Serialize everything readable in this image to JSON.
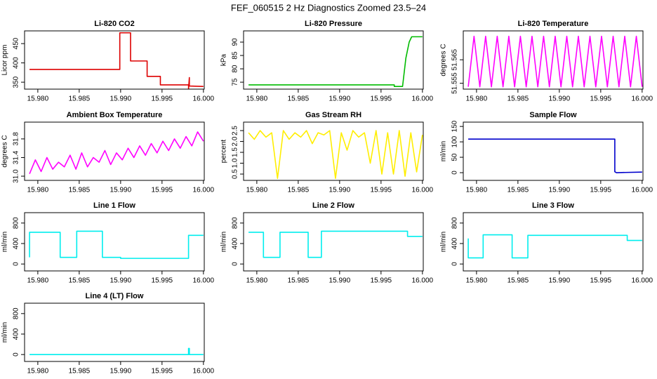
{
  "title": "FEF_060515  2 Hz Diagnostics Zoomed 23.5–24",
  "chart_data": [
    {
      "type": "line",
      "title": "Li-820 CO2",
      "ylabel": "Licor ppm",
      "color": "#dd0000",
      "x": [
        15.979,
        15.9899,
        15.9899,
        15.9912,
        15.9912,
        15.9932,
        15.9932,
        15.9948,
        15.9948,
        15.9982,
        15.9982,
        15.9983,
        15.9983,
        16.0
      ],
      "values": [
        383,
        383,
        478,
        478,
        405,
        405,
        365,
        365,
        343,
        343,
        332,
        362,
        340,
        339
      ],
      "xlim": [
        15.9784,
        16.0001
      ],
      "ylim": [
        332,
        483
      ],
      "xticks": [
        {
          "value": 15.98,
          "label": "15.980"
        },
        15.985,
        {
          "value": 15.99,
          "label": "15.990"
        },
        15.995,
        {
          "value": 16.0,
          "label": "16.000"
        }
      ],
      "yticks": [
        350,
        400,
        450
      ]
    },
    {
      "type": "line",
      "title": "Li-820 Pressure",
      "ylabel": "kPa",
      "color": "#00bb00",
      "x": [
        15.979,
        15.9966,
        15.9966,
        15.9976,
        15.998,
        15.9984,
        15.9987,
        16.0
      ],
      "values": [
        74,
        74,
        73.4,
        73.4,
        84,
        90,
        92,
        92
      ],
      "xlim": [
        15.9784,
        16.0001
      ],
      "ylim": [
        72.4,
        94.2
      ],
      "xticks": [
        {
          "value": 15.98,
          "label": "15.980"
        },
        15.985,
        {
          "value": 15.99,
          "label": "15.990"
        },
        15.995,
        {
          "value": 16.0,
          "label": "16.000"
        }
      ],
      "yticks": [
        75,
        80,
        85,
        90
      ]
    },
    {
      "type": "line",
      "title": "Li-820 Temperature",
      "ylabel": "degrees C",
      "color": "#ff00ff",
      "x": [
        15.979,
        15.9797,
        15.9804,
        15.9811,
        15.9818,
        15.9825,
        15.9832,
        15.9839,
        15.9846,
        15.9853,
        15.986,
        15.9867,
        15.9874,
        15.9881,
        15.9888,
        15.9895,
        15.9902,
        15.9909,
        15.9916,
        15.9923,
        15.993,
        15.9937,
        15.9944,
        15.9951,
        15.9958,
        15.9965,
        15.9972,
        15.9979,
        15.9986,
        15.9993,
        16.0
      ],
      "values": [
        51.5535,
        51.575,
        51.5535,
        51.575,
        51.5535,
        51.575,
        51.5535,
        51.575,
        51.5535,
        51.575,
        51.5535,
        51.575,
        51.5535,
        51.575,
        51.5535,
        51.575,
        51.5535,
        51.575,
        51.5535,
        51.575,
        51.5535,
        51.575,
        51.5535,
        51.575,
        51.5535,
        51.575,
        51.5535,
        51.575,
        51.5535,
        51.575,
        51.5535
      ],
      "xlim": [
        15.9784,
        16.0001
      ],
      "ylim": [
        51.5525,
        51.5773
      ],
      "xticks": [
        {
          "value": 15.98,
          "label": "15.980"
        },
        15.985,
        {
          "value": 15.99,
          "label": "15.990"
        },
        15.995,
        {
          "value": 16.0,
          "label": "16.000"
        }
      ],
      "yticks": [
        51.555,
        51.565
      ]
    },
    {
      "type": "line",
      "title": "Ambient Box Temperature",
      "ylabel": "degrees C",
      "color": "#ff00ff",
      "x": [
        15.979,
        15.9797,
        15.9804,
        15.9811,
        15.9818,
        15.9825,
        15.9832,
        15.9839,
        15.9846,
        15.9853,
        15.986,
        15.9867,
        15.9874,
        15.9881,
        15.9888,
        15.9895,
        15.9902,
        15.9909,
        15.9916,
        15.9923,
        15.993,
        15.9937,
        15.9944,
        15.9951,
        15.9958,
        15.9965,
        15.9972,
        15.9979,
        15.9986,
        15.9993,
        16.0
      ],
      "values": [
        31.05,
        31.35,
        31.1,
        31.4,
        31.15,
        31.3,
        31.2,
        31.45,
        31.15,
        31.5,
        31.2,
        31.4,
        31.3,
        31.55,
        31.25,
        31.5,
        31.35,
        31.6,
        31.4,
        31.65,
        31.45,
        31.7,
        31.5,
        31.75,
        31.55,
        31.8,
        31.6,
        31.85,
        31.65,
        31.95,
        31.75
      ],
      "xlim": [
        15.9784,
        16.0001
      ],
      "ylim": [
        30.91,
        32.16
      ],
      "xticks": [
        {
          "value": 15.98,
          "label": "15.980"
        },
        15.985,
        {
          "value": 15.99,
          "label": "15.990"
        },
        15.995,
        {
          "value": 16.0,
          "label": "16.000"
        }
      ],
      "yticks": [
        {
          "value": 31.0,
          "label": "31.0"
        },
        31.4,
        31.8
      ]
    },
    {
      "type": "line",
      "title": "Gas Stream RH",
      "ylabel": "percent",
      "color": "#ffee00",
      "x": [
        15.979,
        15.9797,
        15.9804,
        15.9811,
        15.9818,
        15.9825,
        15.9832,
        15.9839,
        15.9846,
        15.9853,
        15.986,
        15.9867,
        15.9874,
        15.9881,
        15.9888,
        15.9895,
        15.9902,
        15.9909,
        15.9916,
        15.9923,
        15.993,
        15.9937,
        15.9944,
        15.9951,
        15.9958,
        15.9965,
        15.9972,
        15.9979,
        15.9986,
        15.9993,
        16.0
      ],
      "values": [
        2.4,
        2.1,
        2.5,
        2.2,
        2.4,
        0.3,
        2.5,
        2.1,
        2.4,
        2.2,
        2.5,
        1.9,
        2.4,
        2.3,
        2.5,
        0.3,
        2.4,
        1.6,
        2.5,
        2.2,
        2.4,
        1.0,
        2.5,
        0.5,
        2.4,
        0.5,
        2.5,
        0.4,
        2.4,
        0.6,
        2.3
      ],
      "xlim": [
        15.9784,
        16.0001
      ],
      "ylim": [
        0.21,
        2.89
      ],
      "xticks": [
        {
          "value": 15.98,
          "label": "15.980"
        },
        15.985,
        {
          "value": 15.99,
          "label": "15.990"
        },
        15.995,
        {
          "value": 16.0,
          "label": "16.000"
        }
      ],
      "yticks": [
        0.5,
        {
          "value": 1.0,
          "label": "1.0"
        },
        1.5,
        {
          "value": 2.0,
          "label": "2.0"
        },
        2.5
      ]
    },
    {
      "type": "line",
      "title": "Sample Flow",
      "ylabel": "ml/min",
      "color": "#0000cc",
      "x": [
        15.979,
        15.9967,
        15.9967,
        15.9969,
        16.0
      ],
      "values": [
        109,
        109,
        3,
        0,
        2
      ],
      "xlim": [
        15.9784,
        16.0001
      ],
      "ylim": [
        -25,
        164
      ],
      "xticks": [
        {
          "value": 15.98,
          "label": "15.980"
        },
        15.985,
        {
          "value": 15.99,
          "label": "15.990"
        },
        15.995,
        {
          "value": 16.0,
          "label": "16.000"
        }
      ],
      "yticks": [
        0,
        50,
        100,
        150
      ]
    },
    {
      "type": "line",
      "title": "Line 1 Flow",
      "ylabel": "ml/min",
      "color": "#00eeee",
      "x": [
        15.979,
        15.979,
        15.9827,
        15.9827,
        15.9847,
        15.9847,
        15.9878,
        15.9878,
        15.99,
        15.99,
        15.9982,
        15.9982,
        16.0
      ],
      "values": [
        130,
        620,
        620,
        130,
        130,
        640,
        640,
        130,
        130,
        110,
        110,
        560,
        560
      ],
      "xlim": [
        15.9784,
        16.0001
      ],
      "ylim": [
        -135,
        1003
      ],
      "xticks": [
        {
          "value": 15.98,
          "label": "15.980"
        },
        15.985,
        {
          "value": 15.99,
          "label": "15.990"
        },
        15.995,
        {
          "value": 16.0,
          "label": "16.000"
        }
      ],
      "yticks": [
        0,
        400,
        800
      ]
    },
    {
      "type": "line",
      "title": "Line 2 Flow",
      "ylabel": "ml/min",
      "color": "#00eeee",
      "x": [
        15.979,
        15.9808,
        15.9808,
        15.9828,
        15.9828,
        15.9862,
        15.9862,
        15.9878,
        15.9878,
        15.9982,
        15.9982,
        16.0
      ],
      "values": [
        620,
        620,
        130,
        130,
        620,
        620,
        130,
        130,
        640,
        640,
        540,
        540
      ],
      "xlim": [
        15.9784,
        16.0001
      ],
      "ylim": [
        -135,
        1003
      ],
      "xticks": [
        {
          "value": 15.98,
          "label": "15.980"
        },
        15.985,
        {
          "value": 15.99,
          "label": "15.990"
        },
        15.995,
        {
          "value": 16.0,
          "label": "16.000"
        }
      ],
      "yticks": [
        0,
        400,
        800
      ]
    },
    {
      "type": "line",
      "title": "Line 3 Flow",
      "ylabel": "ml/min",
      "color": "#00eeee",
      "x": [
        15.979,
        15.979,
        15.9808,
        15.9808,
        15.9843,
        15.9843,
        15.9862,
        15.9862,
        15.9982,
        15.9982,
        16.0
      ],
      "values": [
        500,
        120,
        120,
        570,
        570,
        120,
        120,
        560,
        560,
        460,
        460
      ],
      "xlim": [
        15.9784,
        16.0001
      ],
      "ylim": [
        -135,
        1003
      ],
      "xticks": [
        {
          "value": 15.98,
          "label": "15.980"
        },
        15.985,
        {
          "value": 15.99,
          "label": "15.990"
        },
        15.995,
        {
          "value": 16.0,
          "label": "16.000"
        }
      ],
      "yticks": [
        0,
        400,
        800
      ]
    },
    {
      "type": "line",
      "title": "Line 4 (LT) Flow",
      "ylabel": "ml/min",
      "color": "#00eeee",
      "x": [
        15.979,
        15.9982,
        15.9982,
        15.9983,
        15.9983,
        16.0
      ],
      "values": [
        0,
        0,
        120,
        120,
        0,
        0
      ],
      "xlim": [
        15.9784,
        16.0001
      ],
      "ylim": [
        -135,
        1003
      ],
      "xticks": [
        {
          "value": 15.98,
          "label": "15.980"
        },
        15.985,
        {
          "value": 15.99,
          "label": "15.990"
        },
        15.995,
        {
          "value": 16.0,
          "label": "16.000"
        }
      ],
      "yticks": [
        0,
        400,
        800
      ]
    }
  ]
}
